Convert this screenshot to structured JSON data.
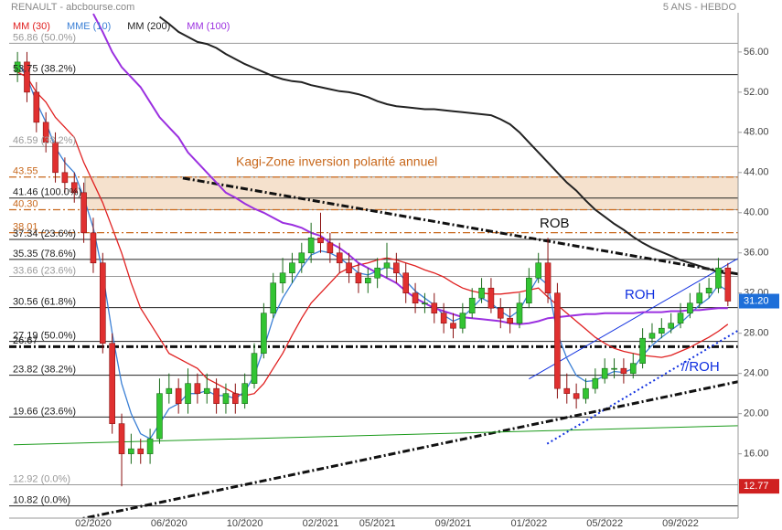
{
  "chart_data": {
    "type": "candlestick",
    "title": "RENAULT - abcbourse.com",
    "subtitle": "5 ANS - HEBDO",
    "xlim": [
      -3.44,
      35.04
    ],
    "ylim": [
      9.6,
      59.9
    ],
    "xticks": [
      {
        "value": 1,
        "label": "02/2020"
      },
      {
        "value": 5,
        "label": "06/2020"
      },
      {
        "value": 9,
        "label": "10/2020"
      },
      {
        "value": 13,
        "label": "02/2021"
      },
      {
        "value": 16,
        "label": "05/2021"
      },
      {
        "value": 20,
        "label": "09/2021"
      },
      {
        "value": 24,
        "label": "01/2022"
      },
      {
        "value": 28,
        "label": "05/2022"
      },
      {
        "value": 32,
        "label": "09/2022"
      }
    ],
    "yticks": [
      {
        "value": 56,
        "label": "56.00"
      },
      {
        "value": 52,
        "label": "52.00"
      },
      {
        "value": 48,
        "label": "48.00"
      },
      {
        "value": 44,
        "label": "44.00"
      },
      {
        "value": 40,
        "label": "40.00"
      },
      {
        "value": 36,
        "label": "36.00"
      },
      {
        "value": 32,
        "label": "32.00"
      },
      {
        "value": 28,
        "label": "28.00"
      },
      {
        "value": 24,
        "label": "24.00"
      },
      {
        "value": 20,
        "label": "20.00"
      },
      {
        "value": 16,
        "label": "16.00"
      }
    ],
    "up_color": "#33c433",
    "down_color": "#e03030",
    "x": [
      -3,
      -2.5,
      -2,
      -1.5,
      -1,
      -0.5,
      0,
      0.5,
      1,
      1.5,
      2,
      2.5,
      3,
      3.5,
      4,
      4.5,
      5,
      5.5,
      6,
      6.5,
      7,
      7.5,
      8,
      8.5,
      9,
      9.5,
      10,
      10.5,
      11,
      11.5,
      12,
      12.5,
      13,
      13.5,
      14,
      14.5,
      15,
      15.5,
      16,
      16.5,
      17,
      17.5,
      18,
      18.5,
      19,
      19.5,
      20,
      20.5,
      21,
      21.5,
      22,
      22.5,
      23,
      23.5,
      24,
      24.5,
      25,
      25.5,
      26,
      26.5,
      27,
      27.5,
      28,
      28.5,
      29,
      29.5,
      30,
      30.5,
      31,
      31.5,
      32,
      32.5,
      33,
      33.5,
      34,
      34.5
    ],
    "open": [
      54,
      55,
      52,
      49,
      47,
      44,
      43,
      42,
      38,
      35,
      27,
      19,
      16,
      16.5,
      16,
      17.5,
      22,
      22.5,
      21,
      23,
      22,
      22.5,
      21,
      22,
      21,
      23,
      26,
      30,
      33,
      34,
      35,
      36,
      37.5,
      37,
      36,
      35,
      34,
      33,
      33.5,
      34.5,
      35,
      34,
      32,
      31,
      31,
      30,
      29,
      28.5,
      30,
      31.5,
      32.5,
      30.5,
      29.5,
      29,
      31,
      33.5,
      35,
      32,
      22.5,
      22,
      21.5,
      22.5,
      23.5,
      24.5,
      24.5,
      24,
      25,
      27.5,
      28,
      28.5,
      29,
      30,
      31,
      32,
      32.5,
      34.5
    ],
    "high": [
      56,
      56,
      53,
      50,
      48,
      45.5,
      44,
      43,
      39.5,
      36,
      28,
      20,
      18,
      17.5,
      18.5,
      23.5,
      24,
      23.5,
      24.5,
      24,
      24,
      23.5,
      23,
      23,
      24,
      27,
      31,
      34,
      35.5,
      36,
      37,
      39,
      40,
      38,
      37,
      36,
      35,
      34.5,
      35.5,
      37,
      36,
      35,
      33,
      32,
      32,
      31,
      30,
      31,
      32.5,
      33.5,
      33.5,
      31.5,
      30.5,
      32,
      34.5,
      36,
      37.5,
      33,
      24,
      23,
      23.5,
      24.5,
      25.5,
      25.5,
      25.5,
      26,
      28.5,
      29,
      29.5,
      30,
      31,
      32,
      33,
      33.5,
      35.5,
      35
    ],
    "low": [
      53,
      51,
      48,
      46,
      43,
      42,
      41,
      37,
      34,
      26,
      18,
      12.77,
      15,
      15,
      15,
      17,
      21,
      20,
      20,
      21,
      21,
      20,
      20,
      20,
      20.5,
      22.5,
      25.5,
      29.5,
      32,
      33,
      34,
      35,
      36,
      35,
      34,
      33,
      32,
      32,
      32.5,
      33.5,
      33,
      31,
      30,
      30,
      29,
      28,
      27.5,
      28,
      29.5,
      31,
      30,
      28.5,
      28,
      28.5,
      30.5,
      33,
      31,
      21.5,
      21,
      20.5,
      21,
      22,
      23,
      23.5,
      23,
      23.5,
      24.5,
      27,
      27.5,
      28,
      28.5,
      29.5,
      30.5,
      31.5,
      32,
      30.7
    ],
    "close": [
      55,
      52,
      49,
      47,
      44,
      43,
      42,
      38,
      35,
      27,
      19,
      16,
      16.5,
      16,
      17.5,
      22,
      22.5,
      21,
      23,
      22,
      22.5,
      21,
      22,
      21,
      23,
      26,
      30,
      33,
      34,
      35,
      36,
      37.5,
      37,
      36,
      35,
      34,
      33,
      33.5,
      34.5,
      35,
      34,
      32,
      31,
      31,
      30,
      29,
      28.5,
      30,
      31.5,
      32.5,
      30.5,
      29.5,
      29,
      31,
      33.5,
      35,
      32,
      22.5,
      22,
      21.5,
      22.5,
      23.5,
      24.5,
      24.5,
      24,
      25,
      27.5,
      28,
      28.5,
      29,
      30,
      31,
      32,
      32.5,
      34.5,
      31.2
    ],
    "series": [
      {
        "name": "MM (30)",
        "color": "#e02020",
        "values": [
          54,
          53.5,
          52,
          51,
          49.5,
          48.5,
          47.5,
          45,
          43,
          41,
          38.5,
          36,
          33,
          30.5,
          29,
          27.5,
          26,
          25.5,
          25,
          24.5,
          23.5,
          23,
          22.5,
          22,
          21.8,
          22,
          23,
          24.5,
          26,
          27.8,
          29.5,
          31,
          32,
          33,
          34,
          34.5,
          34.8,
          35,
          35.3,
          35.5,
          35.3,
          35,
          34.7,
          34.3,
          34,
          33.6,
          33,
          32.5,
          32.2,
          32,
          31.9,
          31.9,
          32,
          32.1,
          32.3,
          32.5,
          31.6,
          30.8,
          30,
          29.2,
          28.4,
          27.6,
          27,
          26.5,
          26.2,
          26,
          25.8,
          25.7,
          25.6,
          25.8,
          26.2,
          26.6,
          27.1,
          27.6,
          28.2,
          28.9
        ]
      },
      {
        "name": "MME (10)",
        "color": "#3a7fd5",
        "values": [
          55,
          53.5,
          51,
          49,
          46.5,
          45,
          44,
          41.5,
          38.5,
          34,
          28,
          23,
          20,
          18,
          17.5,
          19,
          20.5,
          21,
          22,
          22,
          22.3,
          21.8,
          21.8,
          21.5,
          22.2,
          23.8,
          26.5,
          29.5,
          31.5,
          33,
          34.5,
          35.8,
          36.2,
          36,
          35.5,
          34.8,
          34,
          33.8,
          34.2,
          34.6,
          34.3,
          33.2,
          32.2,
          31.5,
          30.8,
          29.8,
          29.2,
          29.6,
          30.5,
          31.5,
          31,
          30.2,
          29.6,
          30.3,
          32,
          33.6,
          32.8,
          28,
          25.5,
          23.8,
          23.2,
          23.3,
          23.8,
          24.2,
          24.1,
          24.5,
          25.8,
          26.8,
          27.6,
          28.3,
          29,
          29.9,
          30.8,
          31.5,
          32.8,
          32.2
        ]
      },
      {
        "name": "MM (200)",
        "color": "#222222",
        "values": [
          null,
          null,
          null,
          null,
          null,
          null,
          null,
          null,
          null,
          null,
          null,
          null,
          null,
          null,
          null,
          59.5,
          58.8,
          58,
          57.5,
          57,
          56.8,
          56.4,
          55.8,
          55.3,
          54.8,
          54.4,
          54,
          53.6,
          53.3,
          53.1,
          53,
          52.7,
          52.5,
          52.3,
          52.1,
          52,
          51.8,
          51.5,
          51.1,
          50.8,
          50.6,
          50.5,
          50.4,
          50.3,
          50.3,
          50.2,
          50.1,
          50,
          49.9,
          49.8,
          49.7,
          49.3,
          48.8,
          48,
          47,
          46,
          45,
          44,
          43,
          42.2,
          41.2,
          40.3,
          39.6,
          38.9,
          38.3,
          37.6,
          37,
          36.5,
          36.1,
          35.7,
          35.3,
          35,
          34.7,
          34.4,
          34.1,
          33.9
        ]
      },
      {
        "name": "MM (100)",
        "color": "#9b30e0",
        "values": [
          null,
          null,
          null,
          null,
          null,
          null,
          null,
          null,
          59.8,
          58,
          56,
          54.5,
          53.5,
          52.5,
          51,
          49.5,
          48.5,
          47.5,
          46,
          45,
          44,
          43,
          42,
          41.5,
          40.9,
          40.4,
          40,
          39.5,
          39,
          38.8,
          38.5,
          38,
          37.7,
          37,
          36.5,
          35.8,
          35,
          34.5,
          34,
          33.5,
          33,
          32.2,
          31.5,
          31,
          30.5,
          30.2,
          29.9,
          29.6,
          29.5,
          29.4,
          29.3,
          29.2,
          29,
          28.9,
          29,
          29.2,
          29.5,
          29.6,
          29.7,
          29.8,
          29.9,
          29.9,
          30,
          30,
          30,
          30,
          30.1,
          30.1,
          30.1,
          30.2,
          30.2,
          30.3,
          30.3,
          30.4,
          30.5,
          30.5
        ]
      }
    ],
    "zone": {
      "label": "Kagi-Zone inversion polarité annuel",
      "from": 40.3,
      "to": 43.55,
      "x_start": 0.565,
      "color": "#c8681c"
    },
    "levels": [
      {
        "value": 56.86,
        "label": "56.86 (50.0%)",
        "color": "#999999",
        "style": "solid"
      },
      {
        "value": 53.75,
        "label": "53.75 (38.2%)",
        "color": "#222222",
        "style": "solid"
      },
      {
        "value": 46.59,
        "label": "46.59 (38.2%)",
        "color": "#999999",
        "style": "solid"
      },
      {
        "value": 43.55,
        "label": "43.55",
        "color": "#c8681c",
        "style": "dashdot"
      },
      {
        "value": 41.46,
        "label": "41.46 (100.0%)",
        "color": "#222222",
        "style": "solid"
      },
      {
        "value": 40.3,
        "label": "40.30",
        "color": "#c8681c",
        "style": "dashdot"
      },
      {
        "value": 38.01,
        "label": "38.01",
        "color": "#c8681c",
        "style": "dashdot"
      },
      {
        "value": 37.34,
        "label": "37.34 (23.6%)",
        "color": "#222222",
        "style": "solid"
      },
      {
        "value": 35.35,
        "label": "35.35 (78.6%)",
        "color": "#222222",
        "style": "solid"
      },
      {
        "value": 33.66,
        "label": "33.66 (23.6%)",
        "color": "#999999",
        "style": "solid"
      },
      {
        "value": 30.56,
        "label": "30.56 (61.8%)",
        "color": "#222222",
        "style": "solid"
      },
      {
        "value": 27.19,
        "label": "27.19 (50.0%)",
        "color": "#222222",
        "style": "solid"
      },
      {
        "value": 26.67,
        "label": "26.67",
        "color": "#111111",
        "style": "thick"
      },
      {
        "value": 23.82,
        "label": "23.82 (38.2%)",
        "color": "#222222",
        "style": "solid"
      },
      {
        "value": 19.66,
        "label": "19.66 (23.6%)",
        "color": "#222222",
        "style": "solid"
      },
      {
        "value": 12.92,
        "label": "12.92 (0.0%)",
        "color": "#999999",
        "style": "solid"
      },
      {
        "value": 10.82,
        "label": "10.82 (0.0%)",
        "color": "#222222",
        "style": "solid"
      }
    ],
    "trendlines": [
      {
        "label": "ROB",
        "x": [
          5.73,
          35.04
        ],
        "y": [
          43.45,
          33.9
        ],
        "color": "#111111",
        "style": "thick"
      },
      {
        "label": "ROH",
        "x": [
          24.0,
          35.04
        ],
        "y": [
          23.45,
          35.45
        ],
        "color": "#1030e0",
        "style": "solid"
      },
      {
        "label": "//ROH",
        "x": [
          24.96,
          35.04
        ],
        "y": [
          17.0,
          28.27
        ],
        "color": "#1030e0",
        "style": "dotted"
      },
      {
        "x": [
          -0.06,
          35.04
        ],
        "y": [
          9.36,
          23.18
        ],
        "color": "#111111",
        "style": "thick"
      },
      {
        "x": [
          -3.2,
          35.04
        ],
        "y": [
          16.9,
          18.8
        ],
        "color": "#1a9a1a",
        "style": "solid"
      }
    ],
    "price_labels": [
      {
        "value": 31.2,
        "label": "31.20",
        "color": "#1e6fd9"
      },
      {
        "value": 12.77,
        "label": "12.77",
        "color": "#d02020"
      }
    ]
  }
}
